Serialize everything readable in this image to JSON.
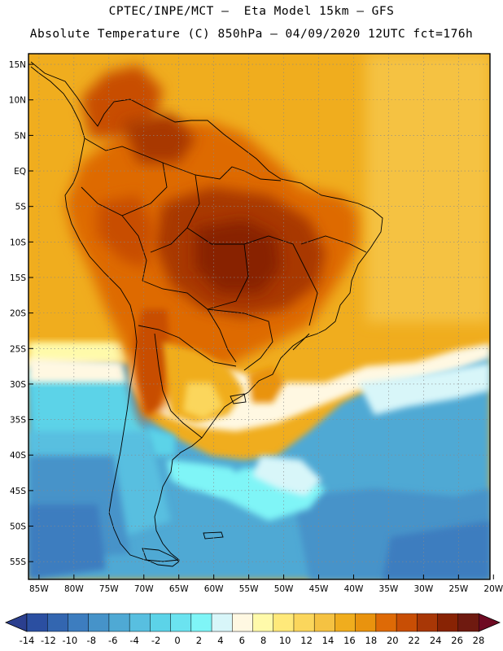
{
  "header": {
    "line1": "CPTEC/INPE/MCT –  Eta Model 15km – GFS",
    "line2": "Absolute Temperature (C) 850hPa – 04/09/2020 12UTC fct=176h"
  },
  "map": {
    "lat_labels": [
      "15N",
      "10N",
      "5N",
      "EQ",
      "5S",
      "10S",
      "15S",
      "20S",
      "25S",
      "30S",
      "35S",
      "40S",
      "45S",
      "50S",
      "55S"
    ],
    "lon_labels": [
      "85W",
      "80W",
      "75W",
      "70W",
      "65W",
      "60W",
      "55W",
      "50W",
      "45W",
      "40W",
      "35W",
      "30W",
      "25W",
      "20W"
    ],
    "lat_values": [
      15,
      10,
      5,
      0,
      -5,
      -10,
      -15,
      -20,
      -25,
      -30,
      -35,
      -40,
      -45,
      -50,
      -55
    ],
    "lon_values": [
      -85,
      -80,
      -75,
      -70,
      -65,
      -60,
      -55,
      -50,
      -45,
      -40,
      -35,
      -30,
      -25,
      -20
    ],
    "lat_range": [
      -57.5,
      16.5
    ],
    "lon_range": [
      -86.5,
      -20.5
    ]
  },
  "colorbar": {
    "labels": [
      "-14",
      "-12",
      "-10",
      "-8",
      "-6",
      "-4",
      "-2",
      "0",
      "2",
      "4",
      "6",
      "8",
      "10",
      "12",
      "14",
      "16",
      "18",
      "20",
      "22",
      "24",
      "26",
      "28"
    ],
    "colors": [
      "#2b4fa1",
      "#3366b0",
      "#3d7dbf",
      "#4693c9",
      "#4fa9d4",
      "#58bfe0",
      "#5cd3e8",
      "#6be3f0",
      "#7ff5f7",
      "#d8f6f9",
      "#fff8e2",
      "#fffaaa",
      "#ffe97a",
      "#fbd65c",
      "#f5c242",
      "#f0ad1e",
      "#e9930e",
      "#de6a06",
      "#c84e05",
      "#a83706",
      "#882304",
      "#6f1a10"
    ],
    "under_color": "#2b3f8f",
    "over_color": "#6e0a22"
  }
}
